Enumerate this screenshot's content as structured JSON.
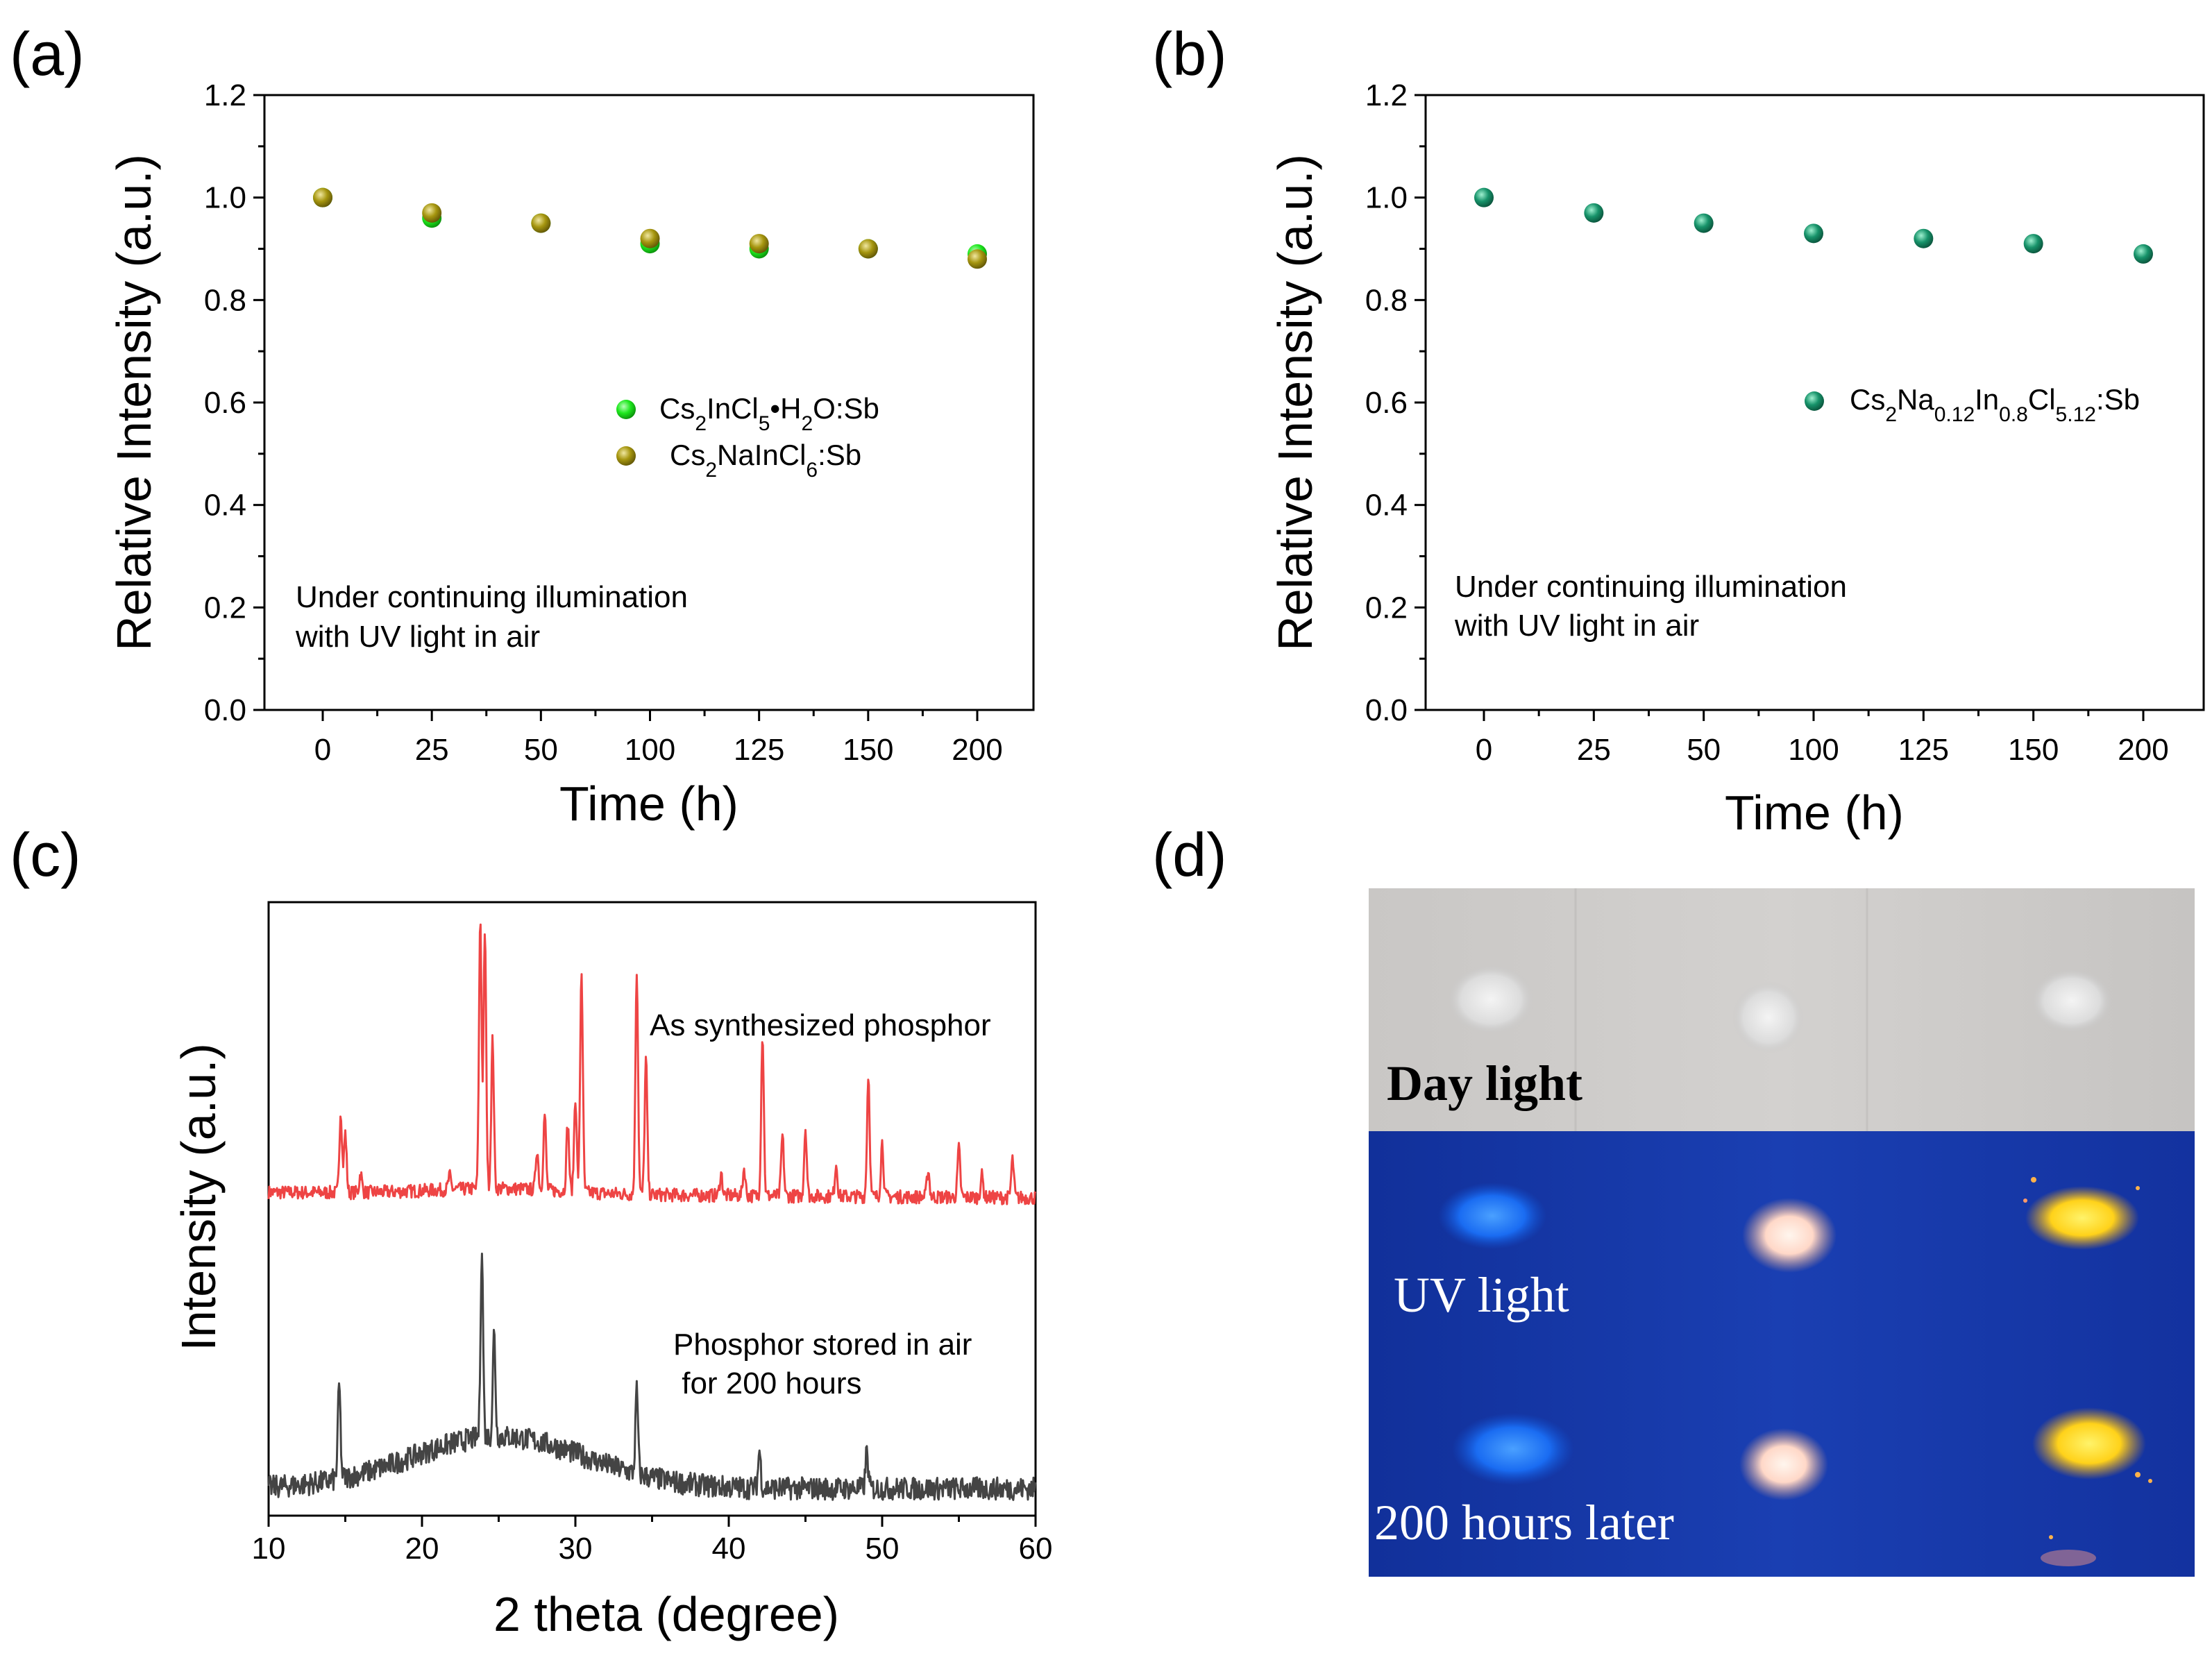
{
  "panel_labels": {
    "a": "(a)",
    "b": "(b)",
    "c": "(c)",
    "d": "(d)"
  },
  "chart_data": [
    {
      "id": "a",
      "type": "scatter",
      "xlabel": "Time (h)",
      "ylabel": "Relative Intensity (a.u.)",
      "categories": [
        "0",
        "25",
        "50",
        "100",
        "125",
        "150",
        "200"
      ],
      "ylim": [
        0,
        1.2
      ],
      "yticks": [
        "0.0",
        "0.2",
        "0.4",
        "0.6",
        "0.8",
        "1.0",
        "1.2"
      ],
      "annotation": [
        "Under continuing illumination",
        "with UV light in air"
      ],
      "series": [
        {
          "name": "Cs2InCl5•H2O:Sb",
          "label_parts": [
            "Cs",
            "2",
            "InCl",
            "5",
            "•H",
            "2",
            "O:Sb"
          ],
          "color": "#1ee81e",
          "values": [
            1.0,
            0.96,
            0.95,
            0.91,
            0.9,
            0.9,
            0.89
          ]
        },
        {
          "name": "Cs2NaInCl6:Sb",
          "label_parts": [
            "Cs",
            "2",
            "NaInCl",
            "6",
            ":Sb"
          ],
          "color": "#a6960f",
          "values": [
            1.0,
            0.97,
            0.95,
            0.92,
            0.91,
            0.9,
            0.88
          ]
        }
      ]
    },
    {
      "id": "b",
      "type": "scatter",
      "xlabel": "Time (h)",
      "ylabel": "Relative Intensity (a.u.)",
      "categories": [
        "0",
        "25",
        "50",
        "100",
        "125",
        "150",
        "200"
      ],
      "ylim": [
        0,
        1.2
      ],
      "yticks": [
        "0.0",
        "0.2",
        "0.4",
        "0.6",
        "0.8",
        "1.0",
        "1.2"
      ],
      "annotation": [
        "Under continuing illumination",
        "with UV light in air"
      ],
      "series": [
        {
          "name": "Cs2Na0.12In0.8Cl5.12:Sb",
          "label_parts": [
            "Cs",
            "2",
            "Na",
            "0.12",
            "In",
            "0.8",
            "Cl",
            "5.12",
            ":Sb"
          ],
          "color": "#17936a",
          "values": [
            1.0,
            0.97,
            0.95,
            0.93,
            0.92,
            0.91,
            0.89
          ]
        }
      ]
    },
    {
      "id": "c",
      "type": "line",
      "xlabel": "2 theta (degree)",
      "ylabel": "Intensity (a.u.)",
      "xlim": [
        10,
        60
      ],
      "xticks": [
        "10",
        "20",
        "30",
        "40",
        "50",
        "60"
      ],
      "series": [
        {
          "name": "As synthesized phosphor",
          "color": "#ee4444",
          "peaks": [
            [
              14.7,
              0.3
            ],
            [
              15.0,
              0.22
            ],
            [
              16.0,
              0.07
            ],
            [
              21.8,
              0.05
            ],
            [
              23.8,
              1.0
            ],
            [
              24.1,
              0.95
            ],
            [
              24.6,
              0.55
            ],
            [
              27.5,
              0.15
            ],
            [
              28.0,
              0.28
            ],
            [
              29.5,
              0.25
            ],
            [
              30.0,
              0.35
            ],
            [
              30.4,
              0.82
            ],
            [
              34.0,
              0.83
            ],
            [
              34.6,
              0.5
            ],
            [
              39.5,
              0.08
            ],
            [
              41.0,
              0.1
            ],
            [
              42.2,
              0.6
            ],
            [
              43.5,
              0.22
            ],
            [
              45.0,
              0.25
            ],
            [
              47.0,
              0.12
            ],
            [
              49.1,
              0.45
            ],
            [
              50.0,
              0.2
            ],
            [
              53.0,
              0.1
            ],
            [
              55.0,
              0.18
            ],
            [
              56.5,
              0.08
            ],
            [
              58.5,
              0.14
            ]
          ]
        },
        {
          "name": "Phosphor stored in air for 200 hours",
          "label_lines": [
            "Phosphor stored in air",
            " for 200 hours"
          ],
          "color": "#444444",
          "peaks": [
            [
              14.6,
              0.45
            ],
            [
              23.9,
              0.9
            ],
            [
              24.7,
              0.5
            ],
            [
              34.0,
              0.4
            ],
            [
              42.0,
              0.18
            ],
            [
              49.0,
              0.18
            ]
          ]
        }
      ]
    }
  ],
  "photo": {
    "rows": [
      {
        "caption": "Day light"
      },
      {
        "caption": "UV light"
      },
      {
        "caption": "200 hours later"
      }
    ]
  }
}
